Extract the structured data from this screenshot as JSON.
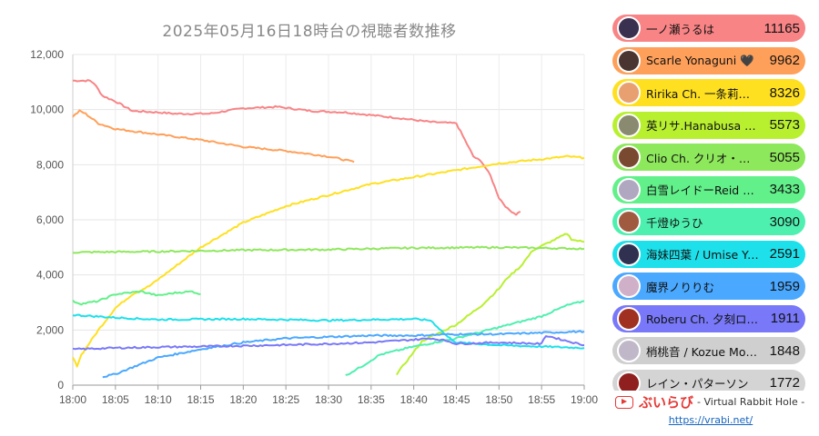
{
  "chart_data": {
    "type": "line",
    "title": "2025年05月16日18時台の視聴者数推移",
    "ylim": [
      0,
      12000
    ],
    "yticks": [
      "0",
      "2,000",
      "4,000",
      "6,000",
      "8,000",
      "10,000",
      "12,000"
    ],
    "xlim": [
      0,
      60
    ],
    "xticks": [
      "18:00",
      "18:05",
      "18:10",
      "18:15",
      "18:20",
      "18:25",
      "18:30",
      "18:35",
      "18:40",
      "18:45",
      "18:50",
      "18:55",
      "19:00"
    ],
    "grid": true,
    "legend_placement": "right",
    "series": [
      {
        "name": "一ノ瀬うるは",
        "value": "11165",
        "color": "#f88486",
        "points": [
          [
            0,
            11050
          ],
          [
            2,
            11050
          ],
          [
            2.5,
            10950
          ],
          [
            3.5,
            10500
          ],
          [
            5,
            10300
          ],
          [
            7,
            9950
          ],
          [
            10,
            9900
          ],
          [
            12,
            9850
          ],
          [
            16,
            9850
          ],
          [
            20,
            10050
          ],
          [
            24,
            10100
          ],
          [
            28,
            9950
          ],
          [
            32,
            9900
          ],
          [
            35,
            9800
          ],
          [
            38,
            9700
          ],
          [
            42,
            9550
          ],
          [
            45,
            9500
          ],
          [
            46,
            8900
          ],
          [
            47,
            8300
          ],
          [
            48,
            8100
          ],
          [
            49,
            7600
          ],
          [
            50,
            6800
          ],
          [
            51,
            6400
          ],
          [
            52,
            6200
          ],
          [
            52.5,
            6300
          ]
        ]
      },
      {
        "name": "Scarle Yonaguni 🖤",
        "value": "9962",
        "color": "#ffa05a",
        "points": [
          [
            0,
            9750
          ],
          [
            0.8,
            9950
          ],
          [
            1.5,
            9850
          ],
          [
            3,
            9500
          ],
          [
            5,
            9300
          ],
          [
            10,
            9100
          ],
          [
            15,
            8900
          ],
          [
            20,
            8650
          ],
          [
            25,
            8500
          ],
          [
            30,
            8300
          ],
          [
            33,
            8100
          ]
        ]
      },
      {
        "name": "Ririka Ch. 一条莉々華",
        "value": "8326",
        "color": "#ffe020",
        "points": [
          [
            0,
            1000
          ],
          [
            0.5,
            700
          ],
          [
            1,
            1100
          ],
          [
            3,
            2000
          ],
          [
            5,
            2800
          ],
          [
            7,
            3300
          ],
          [
            9,
            3600
          ],
          [
            12,
            4300
          ],
          [
            15,
            5000
          ],
          [
            20,
            5900
          ],
          [
            25,
            6500
          ],
          [
            30,
            6900
          ],
          [
            35,
            7300
          ],
          [
            40,
            7550
          ],
          [
            45,
            7800
          ],
          [
            50,
            8050
          ],
          [
            55,
            8200
          ],
          [
            58,
            8300
          ],
          [
            60,
            8250
          ]
        ]
      },
      {
        "name": "英リサ.Hanabusa Lisa",
        "value": "5573",
        "color": "#b8f030",
        "points": [
          [
            38,
            400
          ],
          [
            39.5,
            1000
          ],
          [
            41,
            1600
          ],
          [
            43,
            1900
          ],
          [
            45,
            2200
          ],
          [
            48,
            2900
          ],
          [
            50,
            3500
          ],
          [
            51,
            3900
          ],
          [
            52.5,
            4300
          ],
          [
            54,
            4900
          ],
          [
            56,
            5200
          ],
          [
            58,
            5500
          ],
          [
            58.5,
            5300
          ],
          [
            59,
            5250
          ],
          [
            60,
            5200
          ]
        ]
      },
      {
        "name": "Clio Ch. クリオ・サイカ",
        "value": "5055",
        "color": "#8ee85c",
        "points": [
          [
            0,
            4820
          ],
          [
            10,
            4850
          ],
          [
            20,
            4900
          ],
          [
            30,
            4920
          ],
          [
            40,
            4980
          ],
          [
            50,
            5000
          ],
          [
            60,
            4950
          ]
        ]
      },
      {
        "name": "白雪レイドーReid Shirayuki",
        "value": "3433",
        "color": "#62f08a",
        "points": [
          [
            0,
            3050
          ],
          [
            1,
            2950
          ],
          [
            3,
            3050
          ],
          [
            5,
            3300
          ],
          [
            8,
            3400
          ],
          [
            10,
            3250
          ],
          [
            12,
            3350
          ],
          [
            14,
            3400
          ],
          [
            15,
            3300
          ]
        ]
      },
      {
        "name": "千燈ゆうひ",
        "value": "3090",
        "color": "#4ef0b0",
        "points": [
          [
            32,
            350
          ],
          [
            34,
            700
          ],
          [
            36,
            1100
          ],
          [
            40,
            1400
          ],
          [
            45,
            1700
          ],
          [
            50,
            2100
          ],
          [
            55,
            2500
          ],
          [
            58,
            2900
          ],
          [
            60,
            3050
          ]
        ]
      },
      {
        "name": "海妹四葉 / Umise Yotsuha",
        "value": "2591",
        "color": "#1de0ea",
        "points": [
          [
            0,
            2550
          ],
          [
            5,
            2450
          ],
          [
            10,
            2380
          ],
          [
            20,
            2400
          ],
          [
            30,
            2350
          ],
          [
            40,
            2400
          ],
          [
            42,
            2350
          ],
          [
            43,
            2050
          ],
          [
            44,
            1750
          ],
          [
            45,
            1550
          ],
          [
            50,
            1450
          ],
          [
            55,
            1400
          ],
          [
            60,
            1350
          ]
        ]
      },
      {
        "name": "魔界ノりりむ",
        "value": "1959",
        "color": "#4aa8ff",
        "points": [
          [
            3.5,
            300
          ],
          [
            5,
            400
          ],
          [
            7,
            650
          ],
          [
            10,
            1000
          ],
          [
            15,
            1300
          ],
          [
            20,
            1550
          ],
          [
            25,
            1700
          ],
          [
            30,
            1750
          ],
          [
            35,
            1800
          ],
          [
            40,
            1800
          ],
          [
            45,
            1850
          ],
          [
            50,
            1850
          ],
          [
            55,
            1900
          ],
          [
            60,
            1950
          ]
        ]
      },
      {
        "name": "Roberu Ch. 夕刻ロベル",
        "value": "1911",
        "color": "#7878f8",
        "points": [
          [
            0,
            1300
          ],
          [
            5,
            1350
          ],
          [
            10,
            1380
          ],
          [
            15,
            1400
          ],
          [
            20,
            1430
          ],
          [
            25,
            1460
          ],
          [
            30,
            1500
          ],
          [
            35,
            1550
          ],
          [
            40,
            1650
          ],
          [
            42,
            1700
          ],
          [
            44,
            1600
          ],
          [
            45,
            1500
          ],
          [
            50,
            1550
          ],
          [
            55,
            1500
          ],
          [
            55.5,
            1800
          ],
          [
            58,
            1600
          ],
          [
            60,
            1450
          ]
        ]
      },
      {
        "name": "梢桃音 / Kozue Mone",
        "value": "1848",
        "color": "#cfcfcf",
        "points": []
      },
      {
        "name": "レイン・パターソン",
        "value": "1772",
        "color": "#d4d4d4",
        "points": []
      }
    ]
  },
  "legend": {
    "avatar_colors": [
      "#3a3050",
      "#4a3530",
      "#e8a070",
      "#8a8a70",
      "#7a4a30",
      "#b0a8c0",
      "#a05a40",
      "#303050",
      "#d0b0c8",
      "#a03020",
      "#c0b8c8",
      "#902020"
    ]
  },
  "footer": {
    "icon": "youtube-play-icon",
    "brand": "ぶいらび",
    "subtitle": "- Virtual Rabbit Hole -",
    "link": "https://vrabi.net/"
  }
}
